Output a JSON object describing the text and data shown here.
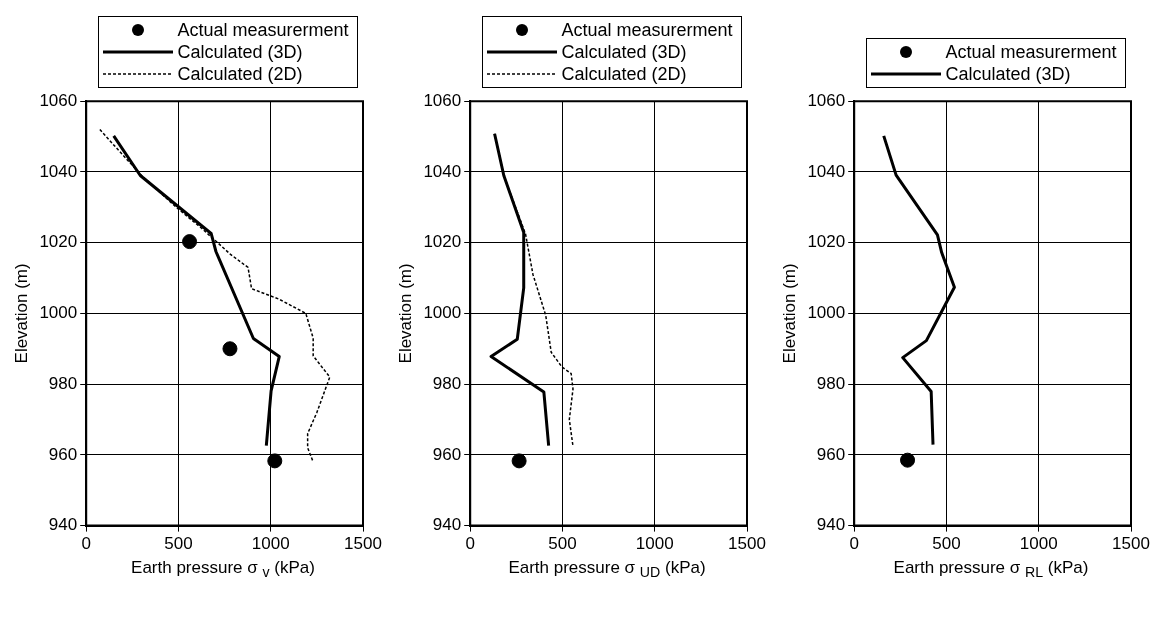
{
  "chart_data": [
    {
      "type": "line",
      "xlabel": "Earth pressure σ $_{v}$ (kPa)",
      "ylabel": "Elevation (m)",
      "xlim": [
        0,
        1500
      ],
      "xticks": [
        0,
        500,
        1000,
        1500
      ],
      "ylim": [
        940,
        1060
      ],
      "yticks": [
        940,
        960,
        980,
        1000,
        1020,
        1040,
        1060
      ],
      "grid": true,
      "legend": "top",
      "series": [
        {
          "name": "Actual measurerment",
          "type": "scatter",
          "marker": "circle",
          "color": "#000000",
          "x": [
            560,
            779,
            1022
          ],
          "values": [
            1020.3,
            990,
            958.3
          ]
        },
        {
          "name": "Calculated (3D)",
          "type": "line",
          "line_style": "solid",
          "marker": "none",
          "color": "#000000",
          "x": [
            149,
            293,
            677,
            703,
            906,
            1046,
            1002,
            976
          ],
          "values": [
            1050.2,
            1039,
            1022.6,
            1017.5,
            992.9,
            987.8,
            978.1,
            962.6
          ]
        },
        {
          "name": "Calculated (2D)",
          "type": "line",
          "line_style": "dotted",
          "marker": "none",
          "color": "#000000",
          "x": [
            74,
            160,
            300,
            488,
            627,
            782,
            877,
            896,
            1046,
            1190,
            1230,
            1230,
            1320,
            1250,
            1200,
            1200,
            1230
          ],
          "values": [
            1052,
            1047,
            1039,
            1030,
            1024,
            1016.7,
            1013,
            1007,
            1004,
            1000,
            993,
            988,
            982,
            972,
            966,
            962,
            958
          ]
        }
      ]
    },
    {
      "type": "line",
      "xlabel": "Earth pressure σ $_{UD}$ (kPa)",
      "ylabel": "Elevation (m)",
      "xlim": [
        0,
        1500
      ],
      "xticks": [
        0,
        500,
        1000,
        1500
      ],
      "ylim": [
        940,
        1060
      ],
      "yticks": [
        940,
        960,
        980,
        1000,
        1020,
        1040,
        1060
      ],
      "grid": true,
      "legend": "top",
      "series": [
        {
          "name": "Actual measurerment",
          "type": "scatter",
          "marker": "circle",
          "color": "#000000",
          "x": [
            265
          ],
          "values": [
            958.3
          ]
        },
        {
          "name": "Calculated (3D)",
          "type": "line",
          "line_style": "solid",
          "marker": "none",
          "color": "#000000",
          "x": [
            132,
            182,
            290,
            290,
            255,
            113,
            399,
            425
          ],
          "values": [
            1050.8,
            1039,
            1022.9,
            1007.2,
            992.7,
            987.8,
            977.8,
            962.6
          ]
        },
        {
          "name": "Calculated (2D)",
          "type": "line",
          "line_style": "dotted",
          "marker": "none",
          "color": "#000000",
          "x": [
            132,
            182,
            300,
            340,
            409,
            439,
            498,
            547,
            557,
            537,
            557
          ],
          "values": [
            1050.8,
            1039,
            1022.4,
            1011,
            999.5,
            989,
            984.8,
            983,
            978.6,
            970,
            962.4
          ]
        }
      ]
    },
    {
      "type": "line",
      "xlabel": "Earth pressure σ $_{RL}$ (kPa)",
      "ylabel": "Elevation (m)",
      "xlim": [
        0,
        1500
      ],
      "xticks": [
        0,
        500,
        1000,
        1500
      ],
      "ylim": [
        940,
        1060
      ],
      "yticks": [
        940,
        960,
        980,
        1000,
        1020,
        1040,
        1060
      ],
      "grid": true,
      "legend": "top",
      "series": [
        {
          "name": "Actual measurerment",
          "type": "scatter",
          "marker": "circle",
          "color": "#000000",
          "x": [
            289
          ],
          "values": [
            958.5
          ]
        },
        {
          "name": "Calculated (3D)",
          "type": "line",
          "line_style": "solid",
          "marker": "none",
          "color": "#000000",
          "x": [
            160,
            227,
            451,
            474,
            543,
            391,
            263,
            417,
            427
          ],
          "values": [
            1050.2,
            1039.1,
            1022.2,
            1017.2,
            1007.4,
            992.3,
            987.5,
            977.9,
            962.9
          ]
        }
      ]
    }
  ]
}
